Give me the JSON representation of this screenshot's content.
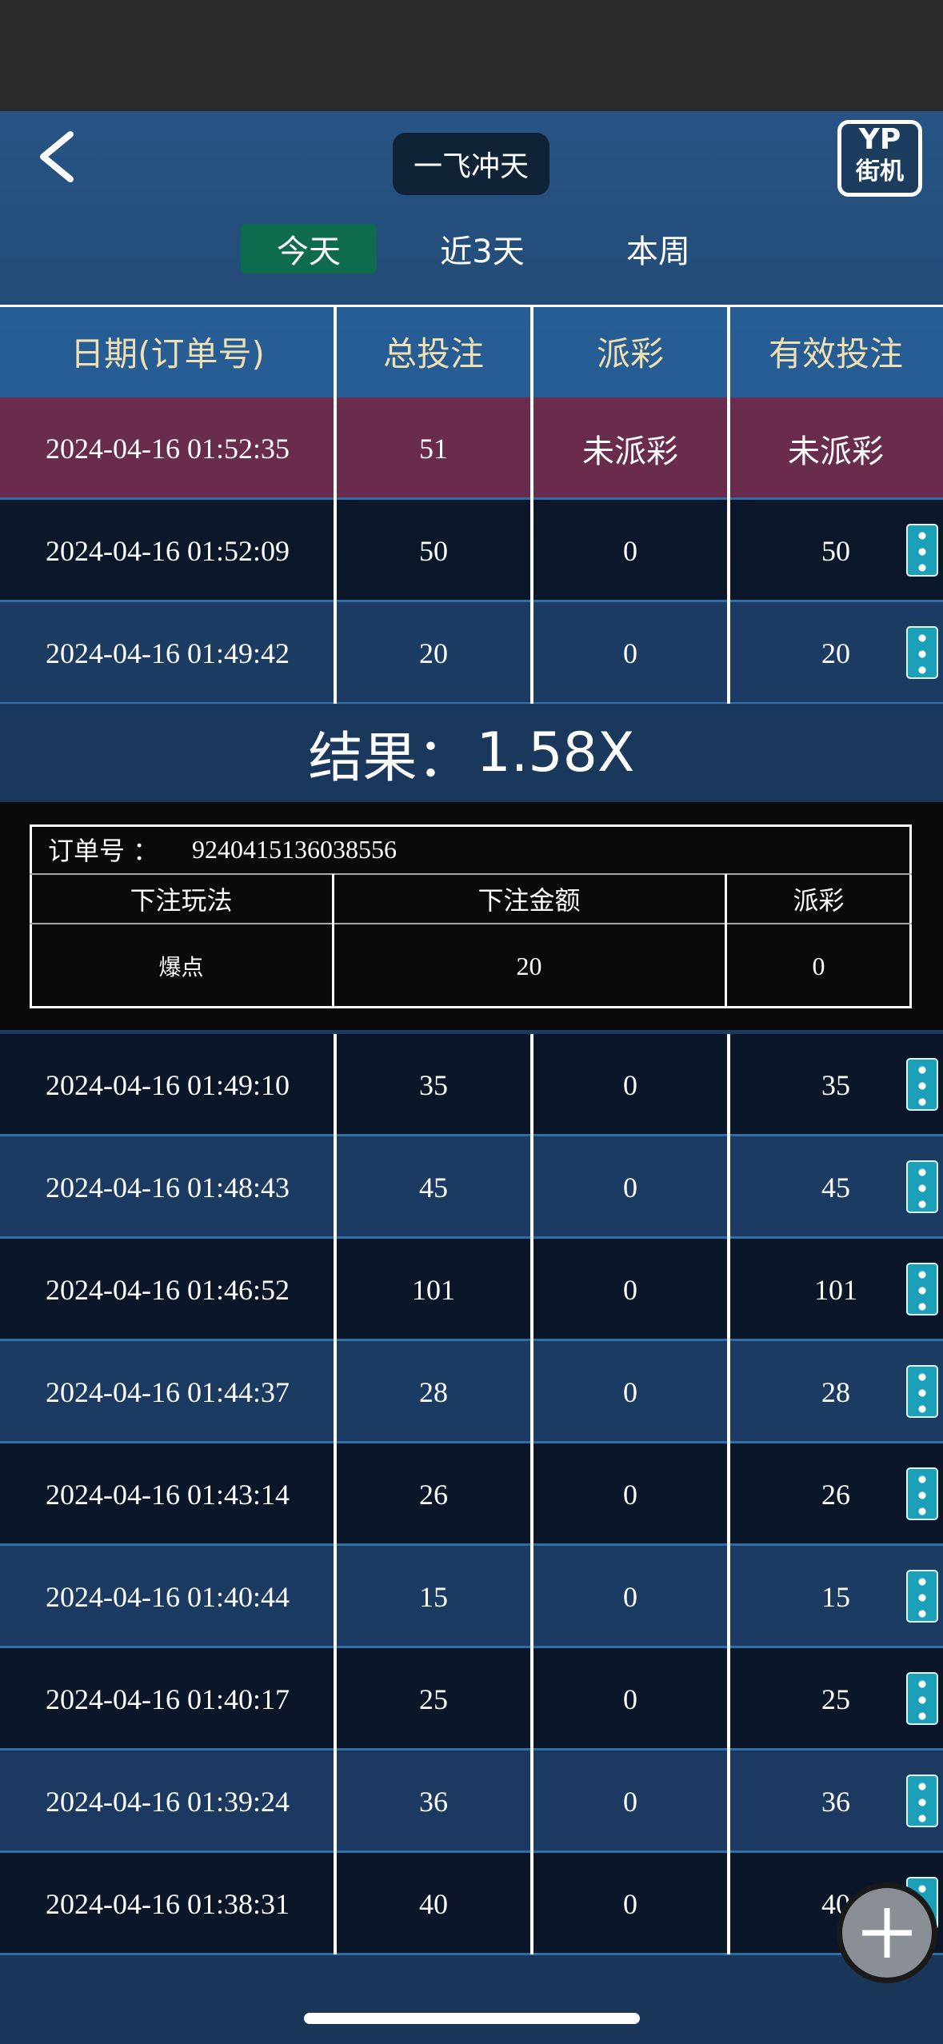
{
  "header": {
    "title": "一飞冲天",
    "logo": [
      "YP",
      "街机"
    ]
  },
  "tabs": [
    "今天",
    "近3天",
    "本周"
  ],
  "table": {
    "columns": [
      "日期(订单号)",
      "总投注",
      "派彩",
      "有效投注"
    ],
    "rows": [
      [
        "2024-04-16 01:52:35",
        "51",
        "未派彩",
        "未派彩"
      ],
      [
        "2024-04-16 01:52:09",
        "50",
        "0",
        "50"
      ],
      [
        "2024-04-16 01:49:42",
        "20",
        "0",
        "20"
      ],
      [
        "2024-04-16 01:49:10",
        "35",
        "0",
        "35"
      ],
      [
        "2024-04-16 01:48:43",
        "45",
        "0",
        "45"
      ],
      [
        "2024-04-16 01:46:52",
        "101",
        "0",
        "101"
      ],
      [
        "2024-04-16 01:44:37",
        "28",
        "0",
        "28"
      ],
      [
        "2024-04-16 01:43:14",
        "26",
        "0",
        "26"
      ],
      [
        "2024-04-16 01:40:44",
        "15",
        "0",
        "15"
      ],
      [
        "2024-04-16 01:40:17",
        "25",
        "0",
        "25"
      ],
      [
        "2024-04-16 01:39:24",
        "36",
        "0",
        "36"
      ],
      [
        "2024-04-16 01:38:31",
        "40",
        "0",
        "40"
      ]
    ]
  },
  "detail": {
    "result_label": "结果：",
    "result_value": "1.58X",
    "order_label": "订单号 ：",
    "order_number": "9240415136038556",
    "columns": [
      "下注玩法",
      "下注金额",
      "派彩"
    ],
    "row": [
      "爆点",
      "20",
      "0"
    ]
  }
}
